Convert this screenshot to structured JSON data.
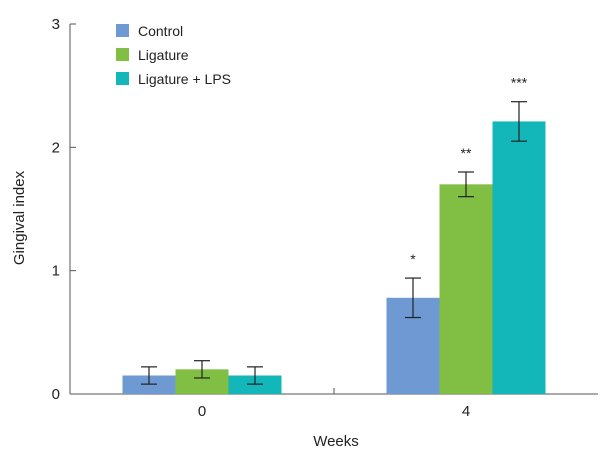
{
  "chart_data": {
    "type": "bar",
    "categories": [
      "0",
      "4"
    ],
    "series": [
      {
        "name": "Control",
        "color": "#6f99d2",
        "values": [
          0.15,
          0.78
        ],
        "errors": [
          0.07,
          0.16
        ]
      },
      {
        "name": "Ligature",
        "color": "#80bf43",
        "values": [
          0.2,
          1.7
        ],
        "errors": [
          0.07,
          0.1
        ]
      },
      {
        "name": "Ligature + LPS",
        "color": "#14b7b9",
        "values": [
          0.15,
          2.21
        ],
        "errors": [
          0.07,
          0.16
        ]
      }
    ],
    "significance": [
      {
        "category": "4",
        "series": "Control",
        "label": "*"
      },
      {
        "category": "4",
        "series": "Ligature",
        "label": "**"
      },
      {
        "category": "4",
        "series": "Ligature + LPS",
        "label": "***"
      }
    ],
    "xlabel": "Weeks",
    "ylabel": "Gingival index",
    "ylim": [
      0,
      3
    ],
    "yticks": [
      0,
      1,
      2,
      3
    ],
    "legend_position": "top-left",
    "grid": false
  }
}
